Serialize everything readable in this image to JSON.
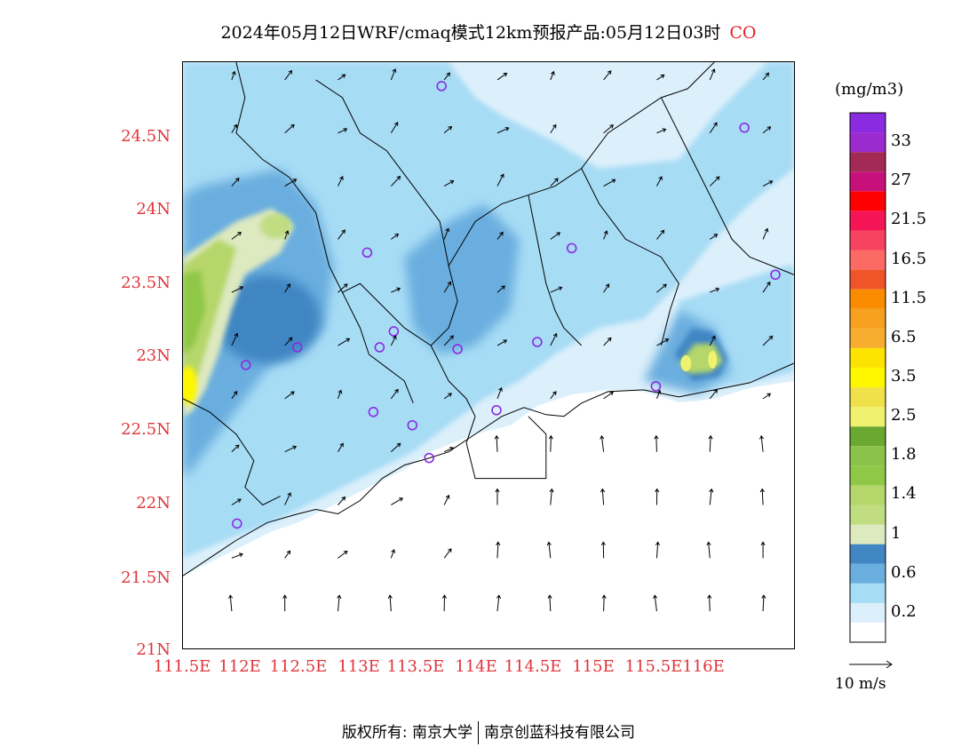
{
  "title": {
    "main": "2024年05月12日WRF/cmaq模式12km预报产品:05月12日03时",
    "species": "CO"
  },
  "map": {
    "y_ticks": [
      "24.5N",
      "24N",
      "23.5N",
      "23N",
      "22.5N",
      "22N",
      "21.5N",
      "21N"
    ],
    "x_ticks": [
      "111.5E",
      "112E",
      "112.5E",
      "113E",
      "113.5E",
      "114E",
      "114.5E",
      "115E",
      "115.5E",
      "116E"
    ],
    "lat_range": [
      21,
      25
    ],
    "lon_range": [
      111.5,
      116.5
    ],
    "station_marker_color": "#8a2be2",
    "ocean_color": "#ffffff"
  },
  "colorbar": {
    "units": "(mg/m3)",
    "levels": [
      {
        "label": "",
        "color": "#ffffff"
      },
      {
        "label": "0.2",
        "color": "#dcf0fb"
      },
      {
        "label": "",
        "color": "#a7dcf5"
      },
      {
        "label": "0.6",
        "color": "#6aaedf"
      },
      {
        "label": "",
        "color": "#3f86c3"
      },
      {
        "label": "1",
        "color": "#dde9bf"
      },
      {
        "label": "",
        "color": "#c0dd82"
      },
      {
        "label": "1.4",
        "color": "#b5d66a"
      },
      {
        "label": "",
        "color": "#8fc746"
      },
      {
        "label": "1.8",
        "color": "#8bc34a"
      },
      {
        "label": "",
        "color": "#6aa832"
      },
      {
        "label": "2.5",
        "color": "#eef26e"
      },
      {
        "label": "",
        "color": "#f0e04a"
      },
      {
        "label": "3.5",
        "color": "#fff700"
      },
      {
        "label": "",
        "color": "#fde400"
      },
      {
        "label": "6.5",
        "color": "#f7ae2e"
      },
      {
        "label": "",
        "color": "#f6a020"
      },
      {
        "label": "11.5",
        "color": "#fb8c00"
      },
      {
        "label": "",
        "color": "#f0552a"
      },
      {
        "label": "16.5",
        "color": "#fb6a64"
      },
      {
        "label": "",
        "color": "#f74360"
      },
      {
        "label": "21.5",
        "color": "#f51455"
      },
      {
        "label": "",
        "color": "#ff0000"
      },
      {
        "label": "27",
        "color": "#c8107a"
      },
      {
        "label": "",
        "color": "#a32a55"
      },
      {
        "label": "33",
        "color": "#9b2bcf"
      },
      {
        "label": "",
        "color": "#8a2be2"
      }
    ]
  },
  "wind_reference": {
    "label": "10 m/s"
  },
  "footer": {
    "left": "版权所有: 南京大学",
    "right": "南京创蓝科技有限公司"
  }
}
